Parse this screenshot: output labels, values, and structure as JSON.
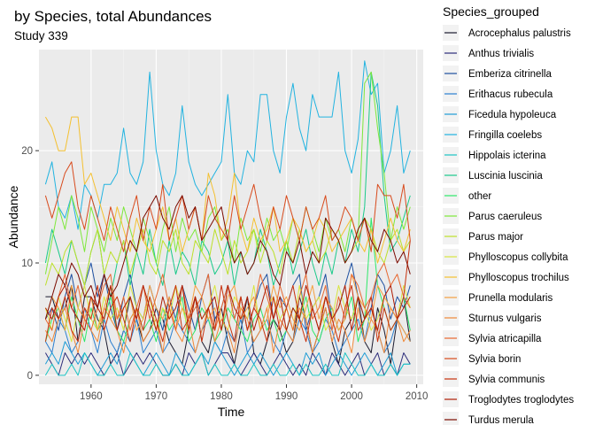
{
  "chart_data": {
    "type": "line",
    "title": "by Species, total Abundances",
    "subtitle": "Study 339",
    "xlabel": "Time",
    "ylabel": "Abundance",
    "xlim": [
      1952,
      2011
    ],
    "ylim": [
      -0.8,
      29
    ],
    "x_ticks": [
      1960,
      1970,
      1980,
      1990,
      2000,
      2010
    ],
    "y_ticks": [
      0,
      10,
      20
    ],
    "grid": true,
    "legend_position": "right",
    "legend_title": "Species_grouped",
    "x": [
      1953,
      1954,
      1955,
      1956,
      1957,
      1958,
      1959,
      1960,
      1961,
      1962,
      1963,
      1964,
      1965,
      1966,
      1967,
      1968,
      1969,
      1970,
      1971,
      1972,
      1973,
      1974,
      1975,
      1976,
      1977,
      1978,
      1979,
      1980,
      1981,
      1982,
      1983,
      1984,
      1985,
      1986,
      1987,
      1988,
      1989,
      1990,
      1991,
      1992,
      1993,
      1994,
      1995,
      1996,
      1997,
      1998,
      1999,
      2000,
      2001,
      2002,
      2003,
      2004,
      2005,
      2006,
      2007,
      2008,
      2009
    ],
    "series": [
      {
        "name": "Acrocephalus palustris",
        "color": "#1a1a2e",
        "values": [
          7,
          7,
          5,
          6,
          8,
          3,
          7,
          7,
          5,
          4,
          1,
          2,
          4,
          7,
          5,
          3,
          4,
          6,
          5,
          3,
          2,
          1,
          4,
          7,
          3,
          2,
          5,
          6,
          3,
          1,
          4,
          7,
          2,
          1,
          3,
          5,
          4,
          2,
          3,
          7,
          5,
          2,
          4,
          6,
          3,
          1,
          4,
          5,
          7,
          3,
          2,
          6,
          4,
          1,
          5,
          7,
          3
        ]
      },
      {
        "name": "Anthus trivialis",
        "color": "#2c2c7a",
        "values": [
          2,
          1,
          0,
          2,
          1,
          2,
          1,
          2,
          1,
          0,
          1,
          2,
          0,
          1,
          2,
          1,
          2,
          1,
          0,
          0,
          1,
          0,
          2,
          1,
          2,
          0,
          1,
          2,
          2,
          1,
          0,
          1,
          2,
          1,
          0,
          1,
          2,
          1,
          0,
          1,
          0,
          2,
          1,
          0,
          2,
          1,
          0,
          1,
          2,
          0,
          1,
          2,
          0,
          1,
          0,
          2,
          1
        ]
      },
      {
        "name": "Emberiza citrinella",
        "color": "#1e50a0",
        "values": [
          5,
          6,
          4,
          7,
          9,
          6,
          8,
          10,
          7,
          9,
          6,
          4,
          7,
          9,
          6,
          5,
          8,
          6,
          4,
          7,
          5,
          8,
          6,
          4,
          7,
          9,
          5,
          6,
          8,
          5,
          7,
          4,
          6,
          8,
          9,
          5,
          7,
          6,
          8,
          9,
          4,
          6,
          7,
          9,
          5,
          6,
          8,
          10,
          7,
          5,
          6,
          9,
          8,
          5,
          7,
          6,
          8
        ]
      },
      {
        "name": "Erithacus rubecula",
        "color": "#2b7fd0",
        "values": [
          3,
          2,
          5,
          4,
          2,
          3,
          6,
          4,
          2,
          5,
          3,
          2,
          4,
          3,
          5,
          2,
          3,
          4,
          2,
          3,
          5,
          4,
          3,
          2,
          4,
          5,
          3,
          2,
          4,
          3,
          5,
          2,
          3,
          4,
          5,
          3,
          2,
          4,
          3,
          5,
          4,
          2,
          3,
          5,
          4,
          2,
          3,
          4,
          5,
          3,
          6,
          4,
          2,
          3,
          5,
          4,
          3
        ]
      },
      {
        "name": "Ficedula hypoleuca",
        "color": "#1f9dd6",
        "values": [
          1,
          2,
          1,
          3,
          2,
          1,
          2,
          1,
          0,
          1,
          2,
          1,
          3,
          2,
          1,
          0,
          1,
          2,
          1,
          0,
          2,
          1,
          0,
          1,
          2,
          1,
          3,
          2,
          1,
          0,
          1,
          2,
          1,
          2,
          1,
          0,
          1,
          2,
          1,
          0,
          2,
          1,
          2,
          0,
          1,
          2,
          1,
          0,
          1,
          2,
          1,
          0,
          1,
          2,
          0,
          1,
          1
        ]
      },
      {
        "name": "Fringilla coelebs",
        "color": "#22b3e0",
        "values": [
          17,
          19,
          15,
          14,
          16,
          13,
          17,
          16,
          14,
          17,
          17,
          18,
          22,
          18,
          17,
          19,
          27,
          20,
          17,
          16,
          18,
          24,
          19,
          17,
          16,
          17,
          18,
          19,
          25,
          18,
          17,
          20,
          19,
          25,
          25,
          20,
          18,
          23,
          26,
          22,
          20,
          25,
          23,
          23,
          23,
          27,
          20,
          18,
          21,
          28,
          25,
          26,
          18,
          20,
          24,
          18,
          20
        ]
      },
      {
        "name": "Hippolais icterina",
        "color": "#1cc4c4",
        "values": [
          0,
          1,
          0,
          0,
          1,
          0,
          2,
          1,
          0,
          0,
          1,
          0,
          0,
          2,
          1,
          0,
          0,
          1,
          0,
          0,
          1,
          0,
          0,
          1,
          2,
          0,
          1,
          0,
          0,
          1,
          0,
          0,
          1,
          0,
          0,
          1,
          0,
          0,
          1,
          0,
          1,
          0,
          0,
          1,
          0,
          0,
          2,
          1,
          0,
          0,
          1,
          0,
          0,
          1,
          0,
          1,
          1
        ]
      },
      {
        "name": "Luscinia luscinia",
        "color": "#1ac98a",
        "values": [
          10,
          13,
          11,
          9,
          12,
          10,
          8,
          11,
          13,
          9,
          7,
          10,
          12,
          8,
          11,
          9,
          13,
          10,
          8,
          12,
          9,
          11,
          10,
          8,
          12,
          11,
          9,
          10,
          12,
          8,
          11,
          9,
          10,
          13,
          11,
          8,
          10,
          12,
          9,
          11,
          13,
          10,
          8,
          11,
          9,
          12,
          10,
          13,
          11,
          15,
          27,
          24,
          16,
          11,
          12,
          14,
          16
        ]
      },
      {
        "name": "other",
        "color": "#2ee86a",
        "values": [
          3,
          5,
          6,
          4,
          7,
          5,
          3,
          6,
          4,
          5,
          7,
          4,
          3,
          5,
          6,
          4,
          5,
          3,
          6,
          4,
          5,
          7,
          3,
          4,
          6,
          5,
          3,
          4,
          6,
          5,
          4,
          3,
          5,
          6,
          4,
          5,
          3,
          4,
          6,
          5,
          7,
          4,
          3,
          5,
          6,
          4,
          5,
          7,
          3,
          5,
          14,
          8,
          6,
          4,
          5,
          7,
          4
        ]
      },
      {
        "name": "Parus caeruleus",
        "color": "#7de83a",
        "values": [
          9,
          12,
          15,
          13,
          16,
          14,
          11,
          15,
          13,
          11,
          14,
          12,
          15,
          13,
          11,
          14,
          12,
          10,
          13,
          15,
          11,
          14,
          12,
          13,
          11,
          14,
          15,
          12,
          13,
          10,
          14,
          12,
          13,
          11,
          14,
          12,
          13,
          11,
          14,
          12,
          15,
          13,
          11,
          14,
          12,
          13,
          11,
          14,
          12,
          26,
          27,
          22,
          18,
          12,
          15,
          13,
          15
        ]
      },
      {
        "name": "Parus major",
        "color": "#bce02a",
        "values": [
          8,
          10,
          9,
          11,
          12,
          10,
          8,
          11,
          13,
          9,
          11,
          10,
          12,
          9,
          11,
          13,
          10,
          9,
          12,
          11,
          13,
          10,
          9,
          12,
          11,
          10,
          13,
          11,
          9,
          12,
          10,
          11,
          13,
          10,
          12,
          11,
          9,
          12,
          10,
          13,
          11,
          12,
          10,
          11,
          13,
          12,
          10,
          11,
          12,
          14,
          13,
          11,
          10,
          12,
          13,
          11,
          12
        ]
      },
      {
        "name": "Phylloscopus collybita",
        "color": "#d8e640",
        "values": [
          6,
          4,
          7,
          5,
          3,
          6,
          8,
          5,
          4,
          7,
          5,
          6,
          4,
          8,
          6,
          5,
          7,
          4,
          6,
          5,
          8,
          6,
          4,
          7,
          5,
          6,
          8,
          5,
          4,
          7,
          6,
          5,
          8,
          4,
          6,
          7,
          5,
          6,
          4,
          8,
          5,
          6,
          7,
          4,
          5,
          8,
          6,
          5,
          7,
          6,
          4,
          5,
          7,
          6,
          5,
          8,
          6
        ]
      },
      {
        "name": "Phylloscopus trochilus",
        "color": "#f4c030",
        "values": [
          23,
          22,
          20,
          20,
          23,
          23,
          17,
          18,
          16,
          14,
          12,
          15,
          13,
          11,
          14,
          12,
          11,
          13,
          15,
          12,
          14,
          11,
          13,
          15,
          12,
          18,
          16,
          12,
          14,
          18,
          13,
          11,
          14,
          12,
          13,
          15,
          11,
          12,
          14,
          13,
          11,
          12,
          14,
          13,
          11,
          12,
          13,
          14,
          12,
          11,
          13,
          10,
          12,
          14,
          12,
          11,
          13
        ]
      },
      {
        "name": "Prunella modularis",
        "color": "#f4a040",
        "values": [
          5,
          7,
          6,
          4,
          8,
          6,
          5,
          7,
          4,
          6,
          8,
          5,
          6,
          7,
          4,
          5,
          8,
          6,
          5,
          7,
          4,
          6,
          5,
          8,
          7,
          5,
          6,
          4,
          7,
          8,
          5,
          6,
          7,
          4,
          5,
          8,
          6,
          7,
          5,
          4,
          6,
          8,
          5,
          7,
          6,
          4,
          5,
          9,
          7,
          6,
          5,
          8,
          7,
          6,
          5,
          4,
          3
        ]
      },
      {
        "name": "Sturnus vulgaris",
        "color": "#f08838",
        "values": [
          4,
          3,
          5,
          6,
          4,
          2,
          5,
          4,
          3,
          6,
          5,
          4,
          2,
          5,
          6,
          3,
          4,
          5,
          2,
          6,
          4,
          3,
          5,
          2,
          4,
          6,
          3,
          5,
          4,
          2,
          6,
          5,
          3,
          4,
          6,
          2,
          5,
          4,
          3,
          6,
          5,
          2,
          4,
          6,
          3,
          5,
          4,
          2,
          6,
          3,
          5,
          4,
          2,
          6,
          5,
          3,
          4
        ]
      },
      {
        "name": "Sylvia atricapilla",
        "color": "#e86830",
        "values": [
          5,
          4,
          7,
          9,
          6,
          8,
          5,
          4,
          6,
          8,
          9,
          5,
          7,
          4,
          6,
          8,
          5,
          7,
          9,
          6,
          4,
          8,
          5,
          6,
          7,
          9,
          4,
          6,
          8,
          5,
          7,
          4,
          6,
          9,
          7,
          5,
          8,
          6,
          4,
          7,
          9,
          5,
          6,
          8,
          4,
          7,
          5,
          9,
          8,
          6,
          7,
          9,
          10,
          8,
          9,
          7,
          6
        ]
      },
      {
        "name": "Sylvia borin",
        "color": "#d84a1c",
        "values": [
          16,
          14,
          16,
          18,
          19,
          15,
          13,
          16,
          14,
          12,
          15,
          13,
          11,
          14,
          16,
          12,
          15,
          13,
          17,
          12,
          14,
          16,
          13,
          15,
          12,
          16,
          14,
          13,
          12,
          16,
          13,
          15,
          17,
          14,
          12,
          15,
          13,
          16,
          14,
          12,
          15,
          13,
          14,
          16,
          12,
          13,
          15,
          14,
          12,
          14,
          11,
          17,
          16,
          16,
          14,
          17,
          12
        ]
      },
      {
        "name": "Sylvia communis",
        "color": "#c8320e",
        "values": [
          3,
          6,
          5,
          7,
          4,
          3,
          6,
          5,
          8,
          4,
          6,
          7,
          5,
          3,
          6,
          4,
          7,
          5,
          3,
          6,
          8,
          4,
          5,
          7,
          3,
          6,
          4,
          8,
          5,
          3,
          7,
          4,
          6,
          5,
          3,
          7,
          4,
          6,
          8,
          5,
          3,
          6,
          4,
          7,
          5,
          3,
          6,
          8,
          4,
          5,
          7,
          3,
          6,
          4,
          5,
          7,
          12
        ]
      },
      {
        "name": "Troglodytes troglodytes",
        "color": "#b01e06",
        "values": [
          6,
          5,
          7,
          8,
          6,
          5,
          4,
          7,
          6,
          5,
          8,
          4,
          6,
          7,
          5,
          8,
          6,
          4,
          7,
          5,
          6,
          8,
          4,
          7,
          5,
          6,
          7,
          4,
          8,
          6,
          5,
          7,
          4,
          6,
          8,
          5,
          7,
          4,
          6,
          5,
          8,
          6,
          4,
          7,
          5,
          6,
          8,
          4,
          7,
          5,
          6,
          4,
          7,
          8,
          5,
          6,
          7
        ]
      },
      {
        "name": "Turdus merula",
        "color": "#7a0a00",
        "values": [
          5,
          7,
          9,
          8,
          10,
          9,
          7,
          8,
          6,
          9,
          7,
          8,
          10,
          12,
          11,
          14,
          15,
          16,
          14,
          13,
          15,
          16,
          14,
          15,
          12,
          13,
          14,
          15,
          12,
          10,
          11,
          9,
          10,
          12,
          11,
          9,
          8,
          11,
          10,
          12,
          9,
          11,
          10,
          14,
          13,
          12,
          10,
          11,
          13,
          14,
          12,
          11,
          13,
          12,
          10,
          11,
          9
        ]
      }
    ]
  }
}
